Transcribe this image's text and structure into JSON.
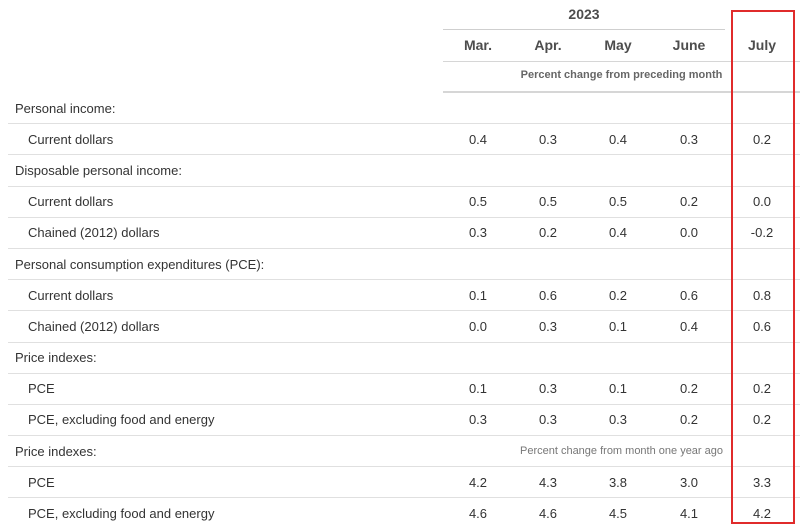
{
  "table": {
    "year": "2023",
    "columns": [
      "Mar.",
      "Apr.",
      "May",
      "June",
      "July"
    ],
    "subheader_monthly": "Percent change from preceding month",
    "rows": [
      {
        "type": "section",
        "label": "Personal income:"
      },
      {
        "type": "item",
        "label": "Current dollars",
        "values": [
          "0.4",
          "0.3",
          "0.4",
          "0.3",
          "0.2"
        ]
      },
      {
        "type": "section",
        "label": "Disposable personal income:"
      },
      {
        "type": "item",
        "label": "Current dollars",
        "values": [
          "0.5",
          "0.5",
          "0.5",
          "0.2",
          "0.0"
        ]
      },
      {
        "type": "item",
        "label": "Chained (2012) dollars",
        "values": [
          "0.3",
          "0.2",
          "0.4",
          "0.0",
          "-0.2"
        ]
      },
      {
        "type": "section",
        "label": "Personal consumption expenditures (PCE):"
      },
      {
        "type": "item",
        "label": "Current dollars",
        "values": [
          "0.1",
          "0.6",
          "0.2",
          "0.6",
          "0.8"
        ]
      },
      {
        "type": "item",
        "label": "Chained (2012) dollars",
        "values": [
          "0.0",
          "0.3",
          "0.1",
          "0.4",
          "0.6"
        ]
      },
      {
        "type": "section",
        "label": "Price indexes:"
      },
      {
        "type": "item",
        "label": "PCE",
        "values": [
          "0.1",
          "0.3",
          "0.1",
          "0.2",
          "0.2"
        ]
      },
      {
        "type": "item",
        "label": "PCE, excluding food and energy",
        "values": [
          "0.3",
          "0.3",
          "0.3",
          "0.2",
          "0.2"
        ]
      },
      {
        "type": "section",
        "label": "Price indexes:",
        "subheader": "Percent change from month one year ago"
      },
      {
        "type": "item",
        "label": "PCE",
        "values": [
          "4.2",
          "4.3",
          "3.8",
          "3.0",
          "3.3"
        ]
      },
      {
        "type": "item",
        "label": "PCE, excluding food and energy",
        "values": [
          "4.6",
          "4.6",
          "4.5",
          "4.1",
          "4.2"
        ]
      }
    ]
  },
  "colors": {
    "highlight_border": "#e02b2b",
    "rule": "#e0e0e0",
    "text": "#333333"
  }
}
